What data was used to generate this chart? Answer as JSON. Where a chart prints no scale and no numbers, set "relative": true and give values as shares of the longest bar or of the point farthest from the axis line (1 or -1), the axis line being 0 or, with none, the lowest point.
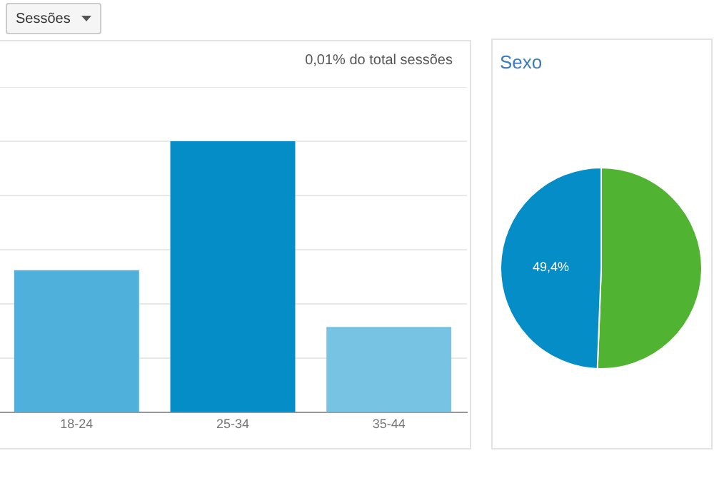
{
  "chart_data": [
    {
      "type": "bar",
      "relative": true,
      "categories": [
        "18-24",
        "25-34",
        "35-44"
      ],
      "values": [
        0.525,
        1,
        0.316
      ],
      "colors": [
        "#50b0dc",
        "#058dc7",
        "#76c3e4"
      ],
      "grid": "y",
      "legend": false,
      "annotations": [
        "Sessões",
        "0,01% do total sessões"
      ]
    },
    {
      "type": "pie",
      "title": "Sexo",
      "categories": [
        null,
        null
      ],
      "values": [
        50.6,
        49.4
      ],
      "colors": [
        "#50b432",
        "#058dc7"
      ],
      "value_labels": [
        null,
        "49,4%"
      ],
      "legend": false
    }
  ]
}
